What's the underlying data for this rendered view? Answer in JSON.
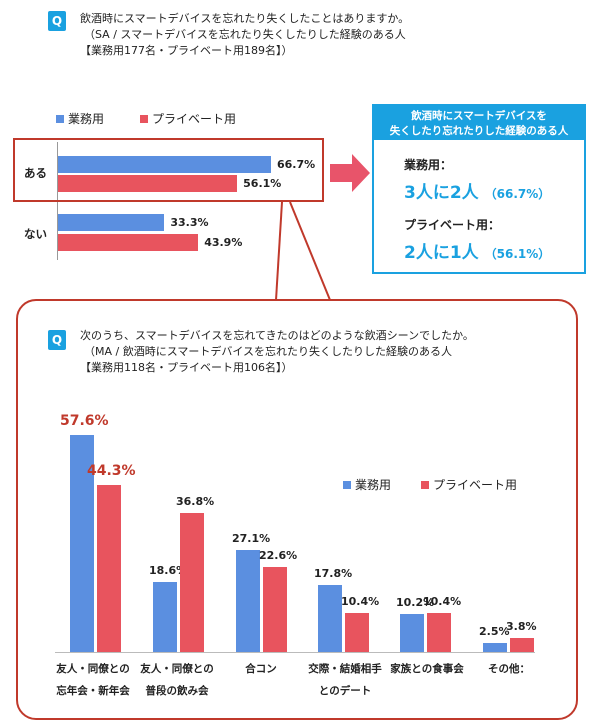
{
  "q1": {
    "badge": "Q",
    "line1": "飲酒時にスマートデバイスを忘れたり失くしたことはありますか。",
    "line2": "（SA / スマートデバイスを忘れたり失くしたりした経験のある人",
    "line3": "【業務用177名・プライベート用189名】）"
  },
  "q2": {
    "badge": "Q",
    "line1": "次のうち、スマートデバイスを忘れてきたのはどのような飲酒シーンでしたか。",
    "line2": "（MA / 飲酒時にスマートデバイスを忘れたり失くしたりした経験のある人",
    "line3": "【業務用118名・プライベート用106名】）"
  },
  "legend": {
    "business": "業務用",
    "private": "プライベート用"
  },
  "colors": {
    "business": "#5b8fe0",
    "private": "#e8545e",
    "accent": "#1aa1e0",
    "frame": "#c0392b",
    "arrow": "#e8546a"
  },
  "callout": {
    "title_line1": "飲酒時にスマートデバイスを",
    "title_line2": "失くしたり忘れたりした経験のある人",
    "business_label": "業務用：",
    "business_value": "3人に2人",
    "business_pct": "（66.7%）",
    "private_label": "プライベート用：",
    "private_value": "2人に1人",
    "private_pct": "（56.1%）"
  },
  "chart_data": [
    {
      "type": "bar",
      "orientation": "horizontal",
      "categories": [
        "ある",
        "ない"
      ],
      "series": [
        {
          "name": "業務用",
          "values": [
            66.7,
            33.3
          ],
          "labels": [
            "66.7%",
            "33.3%"
          ]
        },
        {
          "name": "プライベート用",
          "values": [
            56.1,
            43.9
          ],
          "labels": [
            "56.1%",
            "43.9%"
          ]
        }
      ],
      "xlim": [
        0,
        100
      ],
      "legend": "top-left"
    },
    {
      "type": "bar",
      "categories": [
        [
          "友人・同僚との",
          "忘年会・新年会"
        ],
        [
          "友人・同僚との",
          "普段の飲み会"
        ],
        [
          "合コン"
        ],
        [
          "交際・結婚相手",
          "とのデート"
        ],
        [
          "家族との食事会"
        ],
        [
          "その他："
        ]
      ],
      "series": [
        {
          "name": "業務用",
          "values": [
            57.6,
            18.6,
            27.1,
            17.8,
            10.2,
            2.5
          ],
          "labels": [
            "57.6%",
            "18.6%",
            "27.1%",
            "17.8%",
            "10.2%",
            "2.5%"
          ]
        },
        {
          "name": "プライベート用",
          "values": [
            44.3,
            36.8,
            22.6,
            10.4,
            10.4,
            3.8
          ],
          "labels": [
            "44.3%",
            "36.8%",
            "22.6%",
            "10.4%",
            "10.4%",
            "3.8%"
          ]
        }
      ],
      "ylim": [
        0,
        60
      ],
      "legend": "top-right"
    }
  ]
}
